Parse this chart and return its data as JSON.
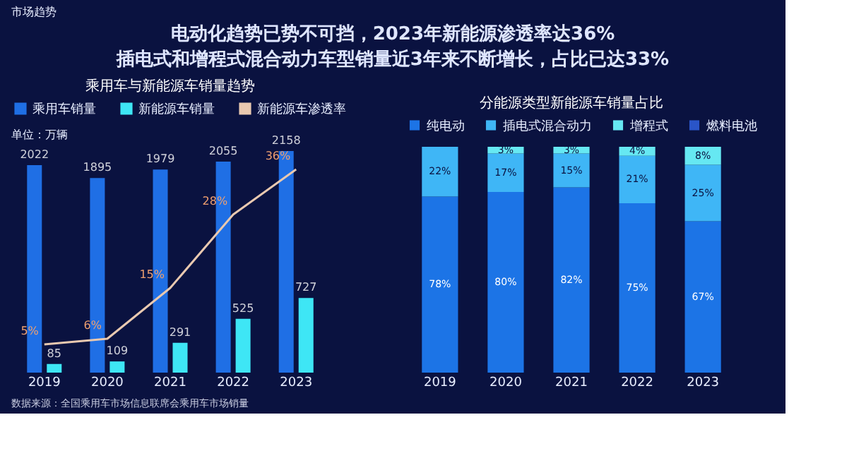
{
  "chart_data": [
    {
      "type": "bar",
      "title": "乘用车与新能源车销量趋势",
      "categories": [
        "2019",
        "2020",
        "2021",
        "2022",
        "2023"
      ],
      "series": [
        {
          "name": "乘用车销量",
          "color": "#1f6fe5",
          "values": [
            2022,
            1895,
            1979,
            2055,
            2158
          ]
        },
        {
          "name": "新能源车销量",
          "color": "#3ee6f5",
          "values": [
            85,
            109,
            291,
            525,
            727
          ]
        },
        {
          "name": "新能源车渗透率",
          "type": "line",
          "axis": "y2",
          "color": "#e9c9b0",
          "values": [
            5,
            6,
            15,
            28,
            36
          ],
          "value_labels": [
            "5%",
            "6%",
            "15%",
            "28%",
            "36%"
          ]
        }
      ],
      "tick_labels": "x",
      "grid": false,
      "legend": "top",
      "data_labels": true,
      "annotations": [
        "市场趋势",
        "电动化趋势已势不可挡，2023年新能源渗透率达36%",
        "插电式和增程式混合动力车型销量近3年来不断增长，占比已达33%",
        "单位：万辆",
        "数据来源：全国乘用车市场信息联席会乘用车市场销量"
      ]
    },
    {
      "type": "bar",
      "stacked": true,
      "title": "分能源类型新能源车销量占比",
      "categories": [
        "2019",
        "2020",
        "2021",
        "2022",
        "2023"
      ],
      "series": [
        {
          "name": "纯电动",
          "color": "#1c74e6",
          "values": [
            78,
            80,
            82,
            75,
            67
          ],
          "value_labels": [
            "78%",
            "80%",
            "82%",
            "75%",
            "67%"
          ]
        },
        {
          "name": "插电式混合动力",
          "color": "#3fb6f6",
          "values": [
            22,
            17,
            15,
            21,
            25
          ],
          "value_labels": [
            "22%",
            "17%",
            "15%",
            "21%",
            "25%"
          ]
        },
        {
          "name": "增程式",
          "color": "#66e8f2",
          "values": [
            null,
            3,
            3,
            4,
            8
          ],
          "value_labels": [
            null,
            "3%",
            "3%",
            "4%",
            "8%"
          ]
        },
        {
          "name": "燃料电池",
          "color": "#2a55c8",
          "values": [
            null,
            null,
            null,
            null,
            null
          ]
        }
      ],
      "ylim": [
        0,
        100
      ],
      "tick_labels": "x",
      "grid": false,
      "legend": "top",
      "data_labels": true
    }
  ]
}
